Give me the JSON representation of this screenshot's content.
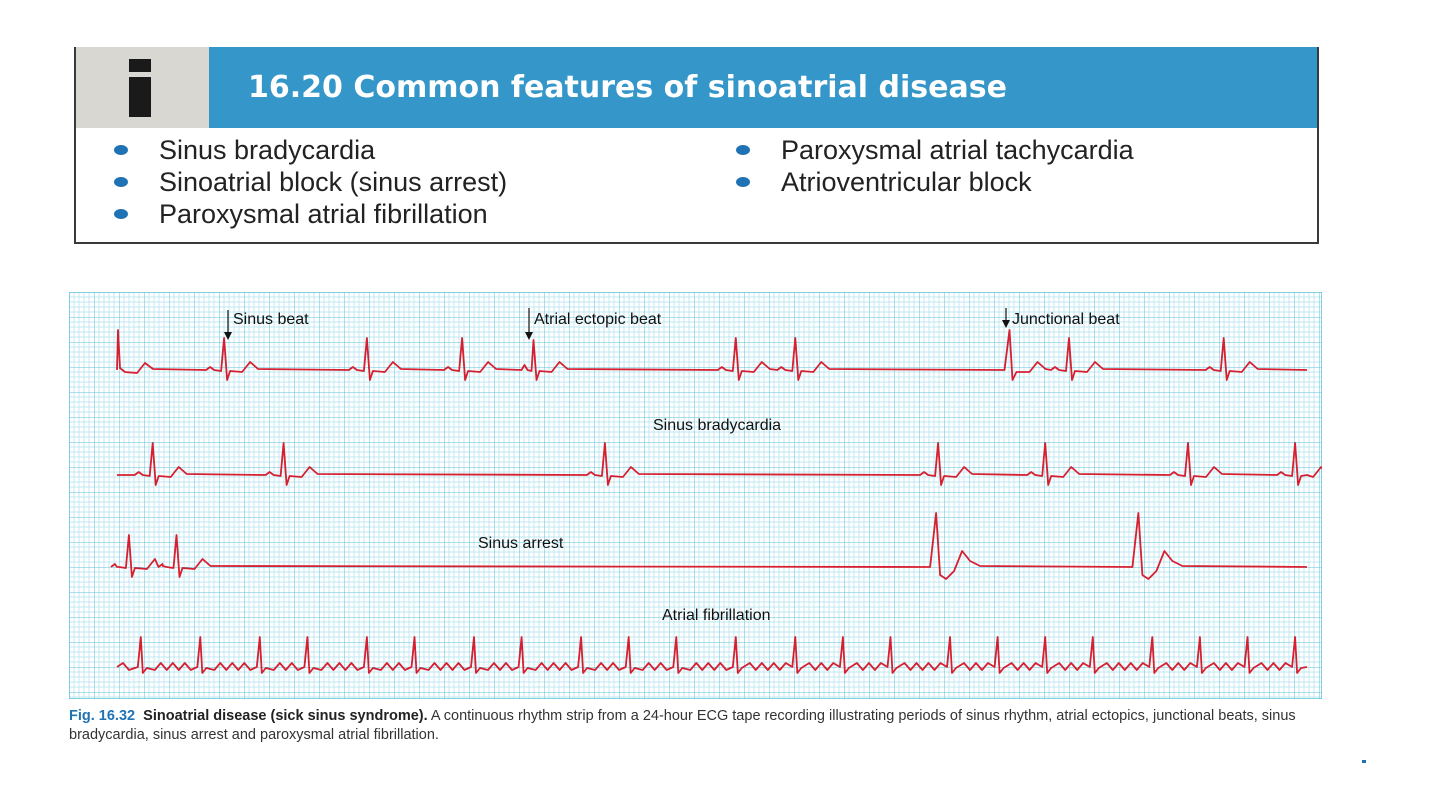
{
  "info_box": {
    "icon": "information-i-icon",
    "title": "16.20  Common features of sinoatrial disease",
    "col1": [
      "Sinus bradycardia",
      "Sinoatrial block (sinus arrest)",
      "Paroxysmal atrial fibrillation"
    ],
    "col2": [
      "Paroxysmal atrial tachycardia",
      "Atrioventricular block"
    ],
    "colors": {
      "header": "#3597c9",
      "icon_cell": "#d9d7d2",
      "bullet": "#1f73b5"
    }
  },
  "figure": {
    "colors": {
      "grid": "#7fd3e6",
      "grid_major": "#4fbcd6",
      "trace": "#d42030"
    },
    "strips": [
      {
        "labels": [
          "Sinus beat",
          "Atrial ectopic beat",
          "Junctional beat"
        ],
        "beats": [
          {
            "t": 0.0,
            "kind": "lead"
          },
          {
            "t": 0.09,
            "kind": "normal"
          },
          {
            "t": 0.21,
            "kind": "normal"
          },
          {
            "t": 0.29,
            "kind": "normal"
          },
          {
            "t": 0.35,
            "kind": "ectopic"
          },
          {
            "t": 0.52,
            "kind": "normal"
          },
          {
            "t": 0.57,
            "kind": "normal"
          },
          {
            "t": 0.75,
            "kind": "junctional"
          },
          {
            "t": 0.8,
            "kind": "normal"
          },
          {
            "t": 0.93,
            "kind": "normal"
          }
        ]
      },
      {
        "label": "Sinus bradycardia",
        "beats": [
          {
            "t": 0.03,
            "kind": "normal"
          },
          {
            "t": 0.14,
            "kind": "normal"
          },
          {
            "t": 0.41,
            "kind": "normal"
          },
          {
            "t": 0.69,
            "kind": "normal"
          },
          {
            "t": 0.78,
            "kind": "normal"
          },
          {
            "t": 0.9,
            "kind": "normal"
          },
          {
            "t": 0.99,
            "kind": "normal"
          }
        ]
      },
      {
        "label": "Sinus arrest",
        "beats": [
          {
            "t": 0.01,
            "kind": "normal"
          },
          {
            "t": 0.05,
            "kind": "normal"
          },
          {
            "t": 0.69,
            "kind": "wide"
          },
          {
            "t": 0.86,
            "kind": "wide"
          }
        ]
      },
      {
        "label": "Atrial fibrillation",
        "beats": [
          {
            "t": 0.02,
            "kind": "af"
          },
          {
            "t": 0.07,
            "kind": "af"
          },
          {
            "t": 0.12,
            "kind": "af"
          },
          {
            "t": 0.16,
            "kind": "af"
          },
          {
            "t": 0.21,
            "kind": "af"
          },
          {
            "t": 0.25,
            "kind": "af"
          },
          {
            "t": 0.3,
            "kind": "af"
          },
          {
            "t": 0.34,
            "kind": "af"
          },
          {
            "t": 0.39,
            "kind": "af"
          },
          {
            "t": 0.43,
            "kind": "af"
          },
          {
            "t": 0.47,
            "kind": "af"
          },
          {
            "t": 0.52,
            "kind": "af"
          },
          {
            "t": 0.57,
            "kind": "af"
          },
          {
            "t": 0.61,
            "kind": "af"
          },
          {
            "t": 0.65,
            "kind": "af"
          },
          {
            "t": 0.7,
            "kind": "af"
          },
          {
            "t": 0.74,
            "kind": "af"
          },
          {
            "t": 0.78,
            "kind": "af"
          },
          {
            "t": 0.82,
            "kind": "af"
          },
          {
            "t": 0.87,
            "kind": "af"
          },
          {
            "t": 0.91,
            "kind": "af"
          },
          {
            "t": 0.95,
            "kind": "af"
          },
          {
            "t": 0.99,
            "kind": "af"
          }
        ]
      }
    ]
  },
  "caption": {
    "fig_num": "Fig. 16.32",
    "fig_title": "Sinoatrial disease (sick sinus syndrome).",
    "text": "A continuous rhythm strip from a 24-hour ECG tape recording illustrating periods of sinus rhythm, atrial ectopics, junctional beats, sinus bradycardia, sinus arrest and paroxysmal atrial fibrillation."
  }
}
